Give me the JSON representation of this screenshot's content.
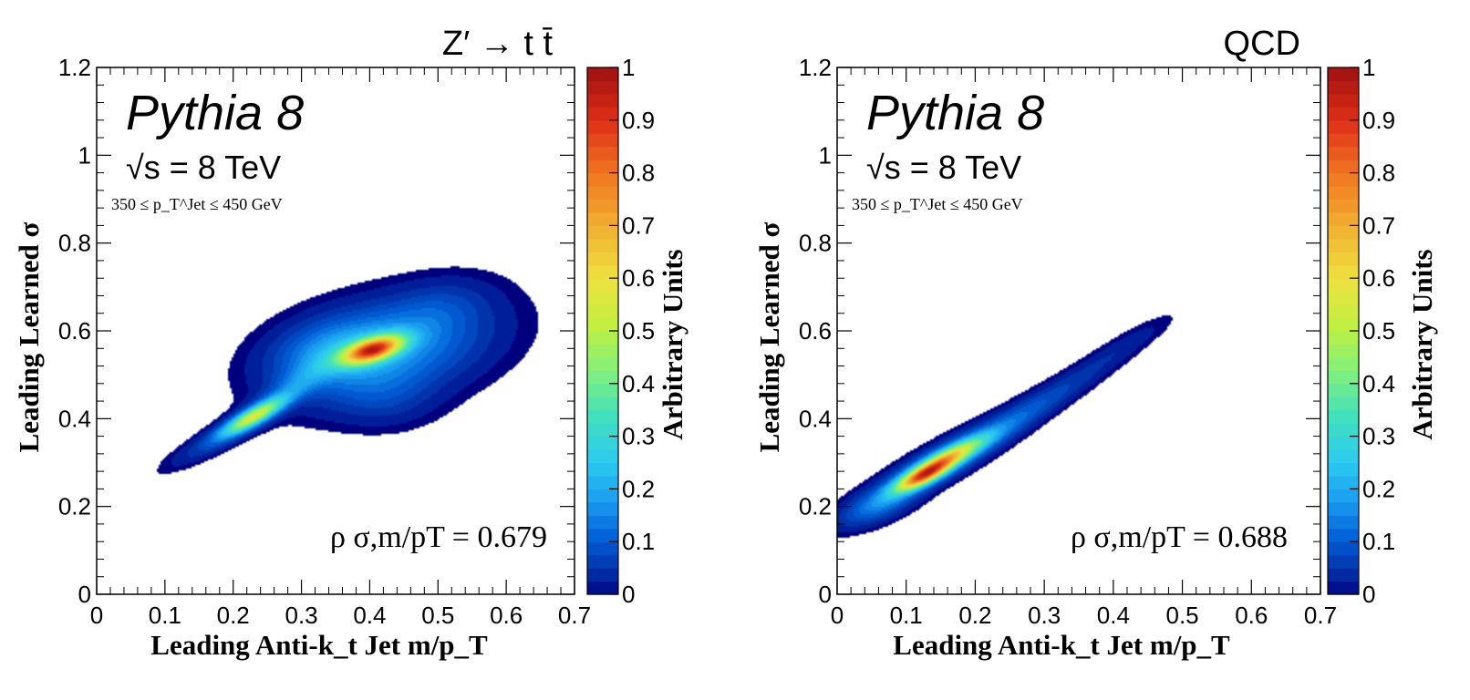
{
  "chart_data": [
    {
      "type": "heatmap",
      "title": "Z′ → t t̄",
      "label_generator": "Pythia 8",
      "label_energy": "√s = 8 TeV",
      "label_cut": "350 ≤ p_T^Jet ≤ 450 GeV",
      "annotation": "ρ σ,m/pT = 0.679",
      "xlabel": "Leading Anti-k_t Jet m/p_T",
      "ylabel": "Leading Learned σ",
      "zlabel": "Arbitrary Units",
      "xlim": [
        0,
        0.7
      ],
      "ylim": [
        0,
        1.2
      ],
      "zlim": [
        0,
        1
      ],
      "x_ticks": [
        "0",
        "0.1",
        "0.2",
        "0.3",
        "0.4",
        "0.5",
        "0.6",
        "0.7"
      ],
      "y_ticks": [
        "0",
        "0.2",
        "0.4",
        "0.6",
        "0.8",
        "1",
        "1.2"
      ],
      "z_ticks": [
        "0",
        "0.1",
        "0.2",
        "0.3",
        "0.4",
        "0.5",
        "0.6",
        "0.7",
        "0.8",
        "0.9",
        "1"
      ],
      "blobs": [
        {
          "x": 0.405,
          "y": 0.557,
          "sx": 0.03,
          "sy": 0.022,
          "rho": 0.55,
          "amp": 1.0
        },
        {
          "x": 0.425,
          "y": 0.555,
          "sx": 0.095,
          "sy": 0.075,
          "rho": 0.35,
          "amp": 0.24
        },
        {
          "x": 0.34,
          "y": 0.555,
          "sx": 0.055,
          "sy": 0.05,
          "rho": 0.3,
          "amp": 0.14
        },
        {
          "x": 0.23,
          "y": 0.405,
          "sx": 0.03,
          "sy": 0.028,
          "rho": 0.85,
          "amp": 0.62
        },
        {
          "x": 0.19,
          "y": 0.365,
          "sx": 0.05,
          "sy": 0.045,
          "rho": 0.9,
          "amp": 0.12
        },
        {
          "x": 0.29,
          "y": 0.475,
          "sx": 0.045,
          "sy": 0.05,
          "rho": 0.85,
          "amp": 0.13
        },
        {
          "x": 0.42,
          "y": 0.45,
          "sx": 0.05,
          "sy": 0.045,
          "rho": 0.0,
          "amp": 0.06
        },
        {
          "x": 0.5,
          "y": 0.65,
          "sx": 0.05,
          "sy": 0.045,
          "rho": 0.3,
          "amp": 0.06
        }
      ]
    },
    {
      "type": "heatmap",
      "title": "QCD",
      "label_generator": "Pythia 8",
      "label_energy": "√s = 8 TeV",
      "label_cut": "350 ≤ p_T^Jet ≤ 450 GeV",
      "annotation": "ρ σ,m/pT = 0.688",
      "xlabel": "Leading Anti-k_t Jet m/p_T",
      "ylabel": "Leading Learned σ",
      "zlabel": "Arbitrary Units",
      "xlim": [
        0,
        0.7
      ],
      "ylim": [
        0,
        1.2
      ],
      "zlim": [
        0,
        1
      ],
      "x_ticks": [
        "0",
        "0.1",
        "0.2",
        "0.3",
        "0.4",
        "0.5",
        "0.6",
        "0.7"
      ],
      "y_ticks": [
        "0",
        "0.2",
        "0.4",
        "0.6",
        "0.8",
        "1",
        "1.2"
      ],
      "z_ticks": [
        "0",
        "0.1",
        "0.2",
        "0.3",
        "0.4",
        "0.5",
        "0.6",
        "0.7",
        "0.8",
        "0.9",
        "1"
      ],
      "blobs": [
        {
          "x": 0.125,
          "y": 0.27,
          "sx": 0.028,
          "sy": 0.025,
          "rho": 0.8,
          "amp": 0.95
        },
        {
          "x": 0.165,
          "y": 0.315,
          "sx": 0.035,
          "sy": 0.03,
          "rho": 0.85,
          "amp": 0.6
        },
        {
          "x": 0.14,
          "y": 0.29,
          "sx": 0.07,
          "sy": 0.065,
          "rho": 0.9,
          "amp": 0.25
        },
        {
          "x": 0.24,
          "y": 0.38,
          "sx": 0.06,
          "sy": 0.06,
          "rho": 0.92,
          "amp": 0.12
        },
        {
          "x": 0.33,
          "y": 0.47,
          "sx": 0.06,
          "sy": 0.06,
          "rho": 0.92,
          "amp": 0.07
        },
        {
          "x": 0.42,
          "y": 0.57,
          "sx": 0.045,
          "sy": 0.045,
          "rho": 0.9,
          "amp": 0.045
        },
        {
          "x": 0.06,
          "y": 0.2,
          "sx": 0.035,
          "sy": 0.03,
          "rho": 0.6,
          "amp": 0.15
        }
      ]
    }
  ],
  "colors": {
    "palette": [
      "#00007f",
      "#0030a8",
      "#005ed6",
      "#1a9cf0",
      "#2ccbf0",
      "#40e0c0",
      "#7ff07f",
      "#c0f040",
      "#f0e040",
      "#f0b030",
      "#f07820",
      "#e03018",
      "#a01010"
    ]
  }
}
